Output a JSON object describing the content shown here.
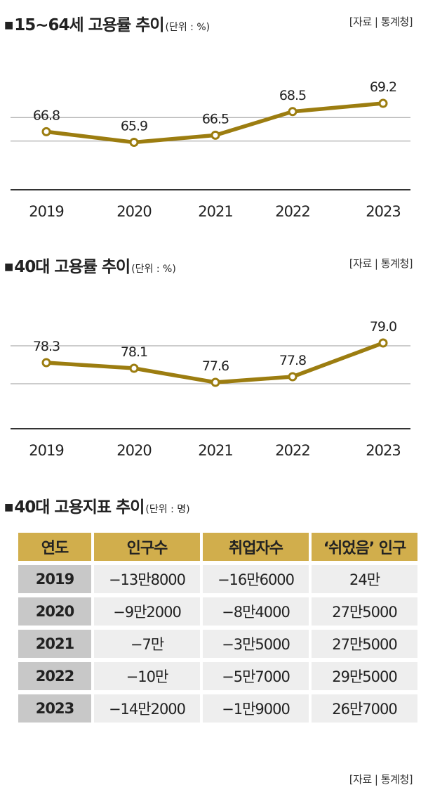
{
  "source_label": "[자료 | 통계청]",
  "table_source_label": "[자료 | 통계청]",
  "colors": {
    "line": "#9c7d10",
    "header_fill": "#d1ae4c",
    "year_fill": "#c8c8c8",
    "cell_fill": "#eeeeee"
  },
  "chart_data": [
    {
      "type": "line",
      "title": "15~64세 고용률 추이",
      "unit": "(단위 : %)",
      "categories": [
        "2019",
        "2020",
        "2021",
        "2022",
        "2023"
      ],
      "values": [
        66.8,
        65.9,
        66.5,
        68.5,
        69.2
      ],
      "value_labels": [
        "66.8",
        "65.9",
        "66.5",
        "68.5",
        "69.2"
      ],
      "ylim": [
        62.0,
        72.0
      ],
      "gridlines": [
        66.0,
        68.0
      ],
      "xlabel": "",
      "ylabel": ""
    },
    {
      "type": "line",
      "title": "40대 고용률 추이",
      "unit": "(단위 : %)",
      "categories": [
        "2019",
        "2020",
        "2021",
        "2022",
        "2023"
      ],
      "values": [
        78.3,
        78.1,
        77.6,
        77.8,
        79.0
      ],
      "value_labels": [
        "78.3",
        "78.1",
        "77.6",
        "77.8",
        "79.0"
      ],
      "ylim": [
        76.0,
        80.2
      ],
      "gridlines": [
        77.55,
        78.9
      ],
      "xlabel": "",
      "ylabel": ""
    },
    {
      "type": "table",
      "title": "40대 고용지표 추이",
      "unit": "(단위 : 명)",
      "columns": [
        "연도",
        "인구수",
        "취업자수",
        "‘쉬었음’ 인구"
      ],
      "rows": [
        [
          "2019",
          "−13만8000",
          "−16만6000",
          "24만"
        ],
        [
          "2020",
          "−9만2000",
          "−8만4000",
          "27만5000"
        ],
        [
          "2021",
          "−7만",
          "−3만5000",
          "27만5000"
        ],
        [
          "2022",
          "−10만",
          "−5만7000",
          "29만5000"
        ],
        [
          "2023",
          "−14만2000",
          "−1만9000",
          "26만7000"
        ]
      ]
    }
  ]
}
